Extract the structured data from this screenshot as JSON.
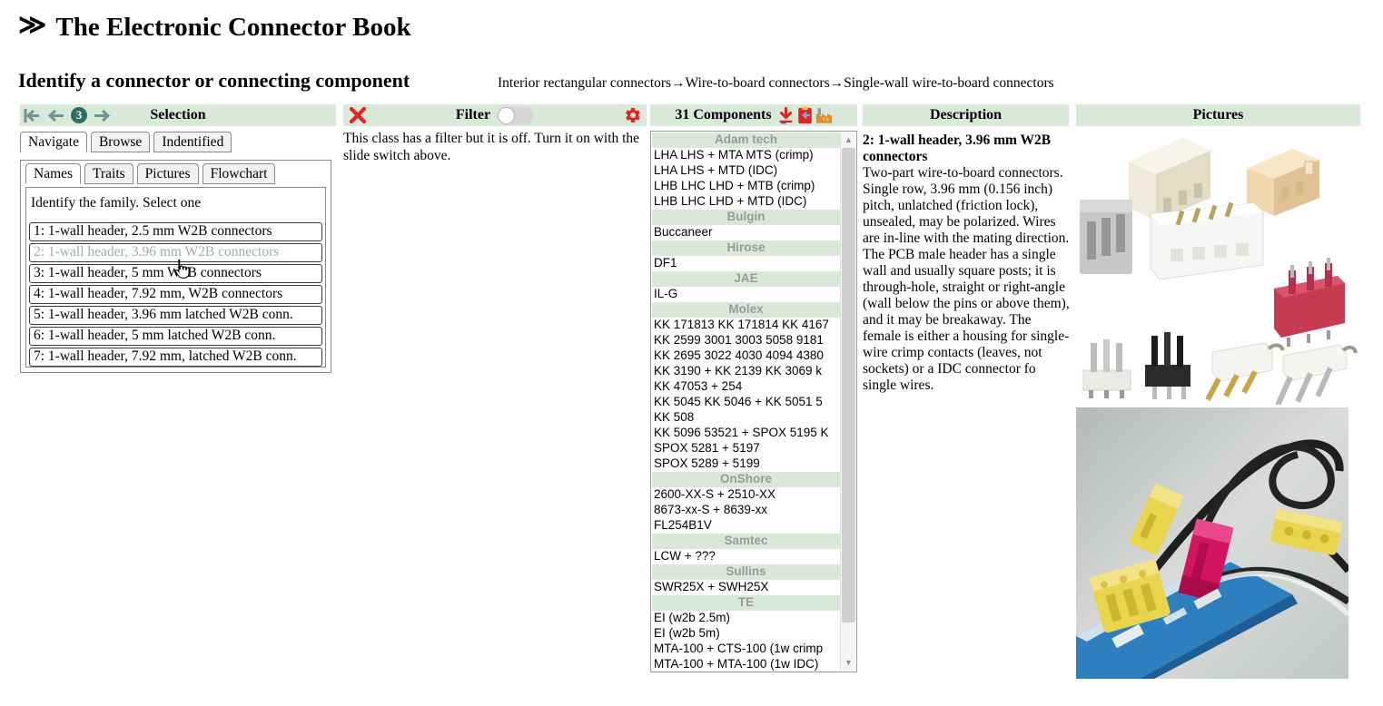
{
  "app": {
    "title": "The Electronic Connector Book",
    "logo_icon": "double-chevron-icon"
  },
  "page": {
    "heading": "Identify a connector or connecting component",
    "breadcrumb": "Interior rectangular connectors→Wire-to-board connectors→Single-wall wire-to-board connectors"
  },
  "selection": {
    "header": "Selection",
    "nav_step": "3",
    "tabs": [
      "Navigate",
      "Browse",
      "Indentified"
    ],
    "active_tab": "Navigate",
    "subtabs": [
      "Names",
      "Traits",
      "Pictures",
      "Flowchart"
    ],
    "active_subtab": "Names",
    "instruction": "Identify the family. Select one",
    "options": [
      {
        "label": "1: 1-wall header, 2.5 mm W2B connectors",
        "selected": false
      },
      {
        "label": "2: 1-wall header, 3.96 mm W2B connectors",
        "selected": true
      },
      {
        "label": "3: 1-wall header, 5 mm W2B connectors",
        "selected": false
      },
      {
        "label": "4: 1-wall header, 7.92 mm, W2B connectors",
        "selected": false
      },
      {
        "label": "5: 1-wall header, 3.96 mm latched W2B conn.",
        "selected": false
      },
      {
        "label": "6: 1-wall header, 5 mm latched W2B conn.",
        "selected": false
      },
      {
        "label": "7: 1-wall header, 7.92 mm, latched W2B conn.",
        "selected": false
      }
    ]
  },
  "filter": {
    "header": "Filter",
    "switch_state": "off",
    "message": "This class has a filter but it is off. Turn it on with the slide switch above."
  },
  "components": {
    "header": "31 Components",
    "icons": [
      "download-icon",
      "clipboard-import-icon",
      "factory-icon"
    ],
    "groups": [
      {
        "manufacturer": "Adam tech",
        "items": [
          "LHA LHS + MTA MTS (crimp)",
          "LHA LHS + MTD (IDC)",
          "LHB LHC LHD + MTB (crimp)",
          "LHB LHC LHD + MTD (IDC)"
        ]
      },
      {
        "manufacturer": "Bulgin",
        "items": [
          "Buccaneer"
        ]
      },
      {
        "manufacturer": "Hirose",
        "items": [
          "DF1"
        ]
      },
      {
        "manufacturer": "JAE",
        "items": [
          "IL-G"
        ]
      },
      {
        "manufacturer": "Molex",
        "items": [
          "KK 171813 KK 171814 KK 4167",
          "KK 2599 3001 3003 5058 9181",
          "KK 2695 3022 4030 4094 4380",
          "KK 3190 + KK 2139 KK 3069 k",
          "KK 47053 + 254",
          "KK 5045 KK 5046 + KK 5051 5",
          "KK 508",
          "KK 5096 53521 + SPOX 5195 K",
          "SPOX 5281 + 5197",
          "SPOX 5289 + 5199"
        ]
      },
      {
        "manufacturer": "OnShore",
        "items": [
          "2600-XX-S + 2510-XX",
          "8673-xx-S + 8639-xx",
          "FL254B1V"
        ]
      },
      {
        "manufacturer": "Samtec",
        "items": [
          "LCW + ???"
        ]
      },
      {
        "manufacturer": "Sullins",
        "items": [
          "SWR25X + SWH25X"
        ]
      },
      {
        "manufacturer": "TE",
        "items": [
          "EI (w2b 2.5m)",
          "EI (w2b 5m)",
          "MTA-100 + CTS-100 (1w crimp",
          "MTA-100 + MTA-100 (1w IDC)"
        ]
      }
    ]
  },
  "description": {
    "header": "Description",
    "title": "2: 1-wall header, 3.96 mm W2B connectors",
    "body": "Two-part wire-to-board connectors. Single row, 3.96 mm (0.156 inch) pitch, unlatched (friction lock), unsealed, may be polarized. Wires are in-line with the mating direction. The PCB male header has a single wall and usually square posts; it is through-hole, straight or right-angle (wall below the pins or above them), and it may be breakaway. The female is either a housing for single-wire crimp contacts (leaves, not sockets) or a IDC connector fo single wires."
  },
  "pictures": {
    "header": "Pictures"
  },
  "colors": {
    "bar_green": "#d8e9d8",
    "accent_red": "#e32222",
    "nav_teal": "#6f968c",
    "step_circle": "#2d6e64",
    "selected_option_text": "#9cafa9",
    "group_header_text": "#9a9a9a"
  }
}
